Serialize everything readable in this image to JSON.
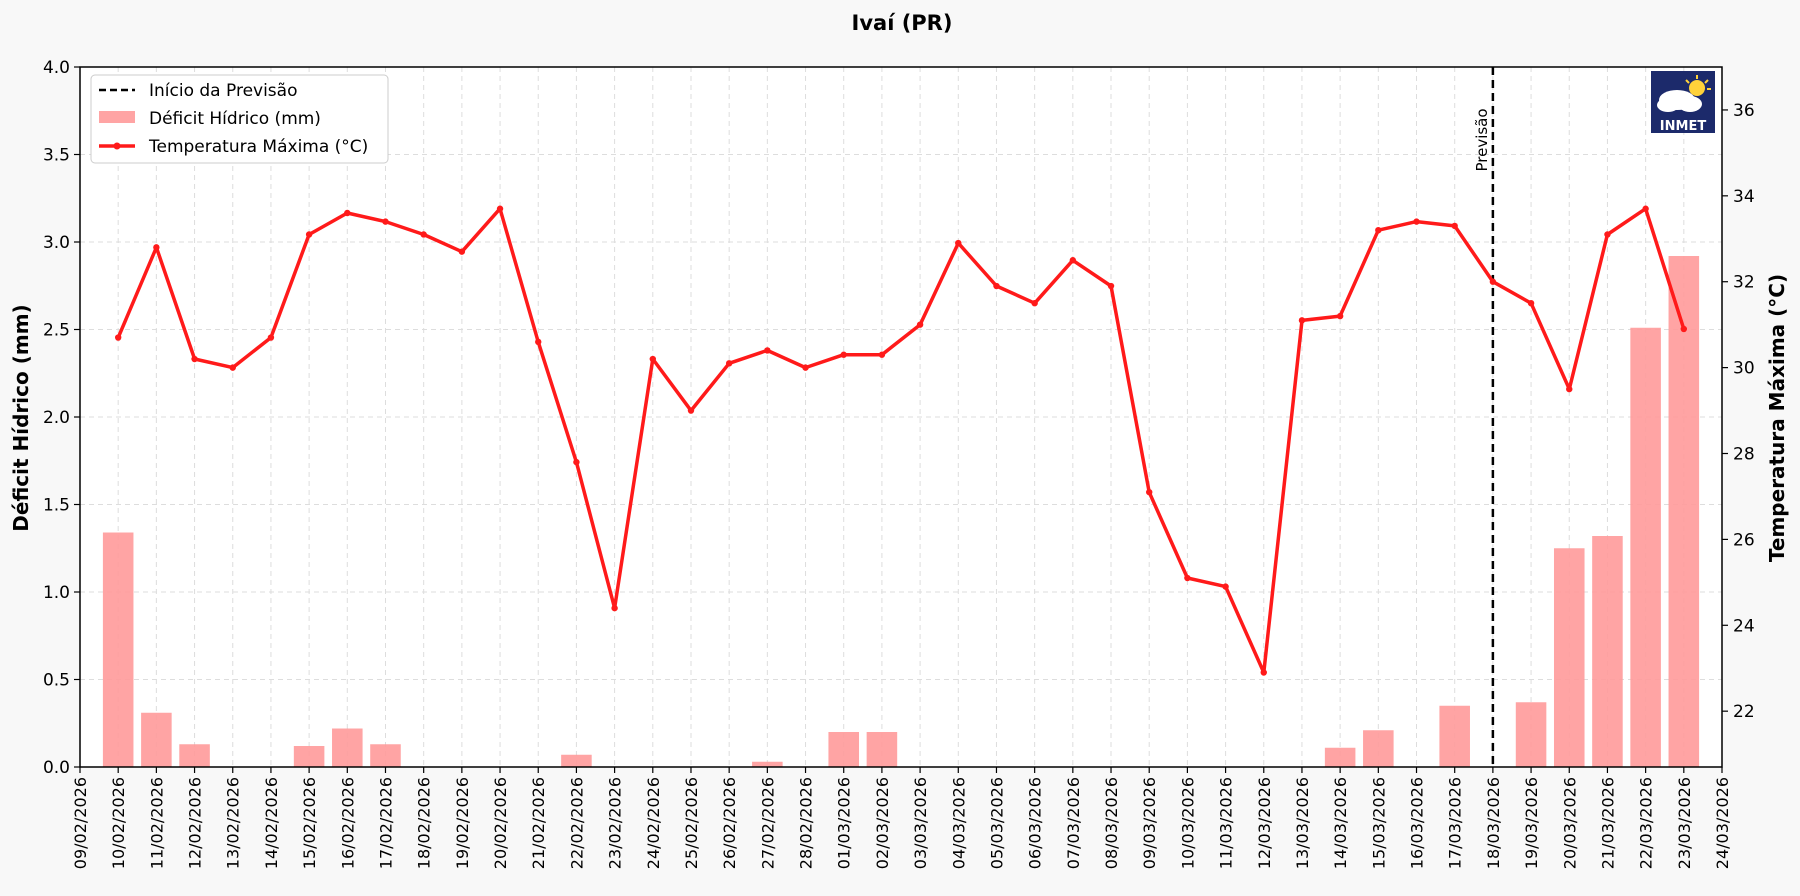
{
  "chart_data": {
    "type": "bar+line",
    "title": "Ivaí (PR)",
    "ylabel_left": "Déficit Hídrico (mm)",
    "ylabel_right": "Temperatura Máxima (°C)",
    "ylim_left": [
      0,
      4.0
    ],
    "ylim_right": [
      20.7,
      37.0
    ],
    "yticks_left": [
      "0.0",
      "0.5",
      "1.0",
      "1.5",
      "2.0",
      "2.5",
      "3.0",
      "3.5",
      "4.0"
    ],
    "yticks_right": [
      "22",
      "24",
      "26",
      "28",
      "30",
      "32",
      "34",
      "36"
    ],
    "grid": true,
    "legend_position": "top-left",
    "legend": [
      {
        "label": "Início da Previsão",
        "kind": "dashed-line",
        "color": "#000000"
      },
      {
        "label": "Déficit Hídrico (mm)",
        "kind": "bar",
        "color": "#ff9a9a"
      },
      {
        "label": "Temperatura Máxima (°C)",
        "kind": "line-marker",
        "color": "#ff1a1a"
      }
    ],
    "forecast_start": "18/03/2026",
    "forecast_label": "Previsão",
    "logo_text": "INMET",
    "x_ticks": [
      "09/02/2026",
      "10/02/2026",
      "11/02/2026",
      "12/02/2026",
      "13/02/2026",
      "14/02/2026",
      "15/02/2026",
      "16/02/2026",
      "17/02/2026",
      "18/02/2026",
      "19/02/2026",
      "20/02/2026",
      "21/02/2026",
      "22/02/2026",
      "23/02/2026",
      "24/02/2026",
      "25/02/2026",
      "26/02/2026",
      "27/02/2026",
      "28/02/2026",
      "01/03/2026",
      "02/03/2026",
      "03/03/2026",
      "04/03/2026",
      "05/03/2026",
      "06/03/2026",
      "07/03/2026",
      "08/03/2026",
      "09/03/2026",
      "10/03/2026",
      "11/03/2026",
      "12/03/2026",
      "13/03/2026",
      "14/03/2026",
      "15/03/2026",
      "16/03/2026",
      "17/03/2026",
      "18/03/2026",
      "19/03/2026",
      "20/03/2026",
      "21/03/2026",
      "22/03/2026",
      "23/03/2026",
      "24/03/2026"
    ],
    "dates": [
      "10/02/2026",
      "11/02/2026",
      "12/02/2026",
      "13/02/2026",
      "14/02/2026",
      "15/02/2026",
      "16/02/2026",
      "17/02/2026",
      "18/02/2026",
      "19/02/2026",
      "20/02/2026",
      "21/02/2026",
      "22/02/2026",
      "23/02/2026",
      "24/02/2026",
      "25/02/2026",
      "26/02/2026",
      "27/02/2026",
      "28/02/2026",
      "01/03/2026",
      "02/03/2026",
      "03/03/2026",
      "04/03/2026",
      "05/03/2026",
      "06/03/2026",
      "07/03/2026",
      "08/03/2026",
      "09/03/2026",
      "10/03/2026",
      "11/03/2026",
      "12/03/2026",
      "13/03/2026",
      "14/03/2026",
      "15/03/2026",
      "16/03/2026",
      "17/03/2026",
      "18/03/2026",
      "19/03/2026",
      "20/03/2026",
      "21/03/2026",
      "22/03/2026",
      "23/03/2026"
    ],
    "series": [
      {
        "name": "Déficit Hídrico (mm)",
        "type": "bar",
        "values": [
          1.34,
          0.31,
          0.13,
          0,
          0,
          0.12,
          0.22,
          0.13,
          0,
          0,
          0,
          0,
          0.07,
          0,
          0,
          0,
          0,
          0.03,
          0,
          0.2,
          0.2,
          0,
          0,
          0,
          0,
          0,
          0,
          0,
          0,
          0,
          0,
          0,
          0.11,
          0.21,
          0,
          0.35,
          0,
          0.37,
          1.25,
          1.32,
          2.51,
          2.92
        ]
      },
      {
        "name": "Temperatura Máxima (°C)",
        "type": "line",
        "values": [
          30.7,
          32.8,
          30.2,
          30.0,
          30.7,
          33.1,
          33.6,
          33.4,
          33.1,
          32.7,
          33.7,
          30.6,
          27.8,
          24.4,
          30.2,
          29.0,
          30.1,
          30.4,
          30.0,
          30.3,
          30.3,
          31.0,
          32.9,
          31.9,
          31.5,
          32.5,
          31.9,
          27.1,
          25.1,
          24.9,
          22.9,
          31.1,
          31.2,
          33.2,
          33.4,
          33.3,
          32.0,
          31.5,
          29.5,
          33.1,
          33.7,
          30.9
        ]
      }
    ]
  }
}
